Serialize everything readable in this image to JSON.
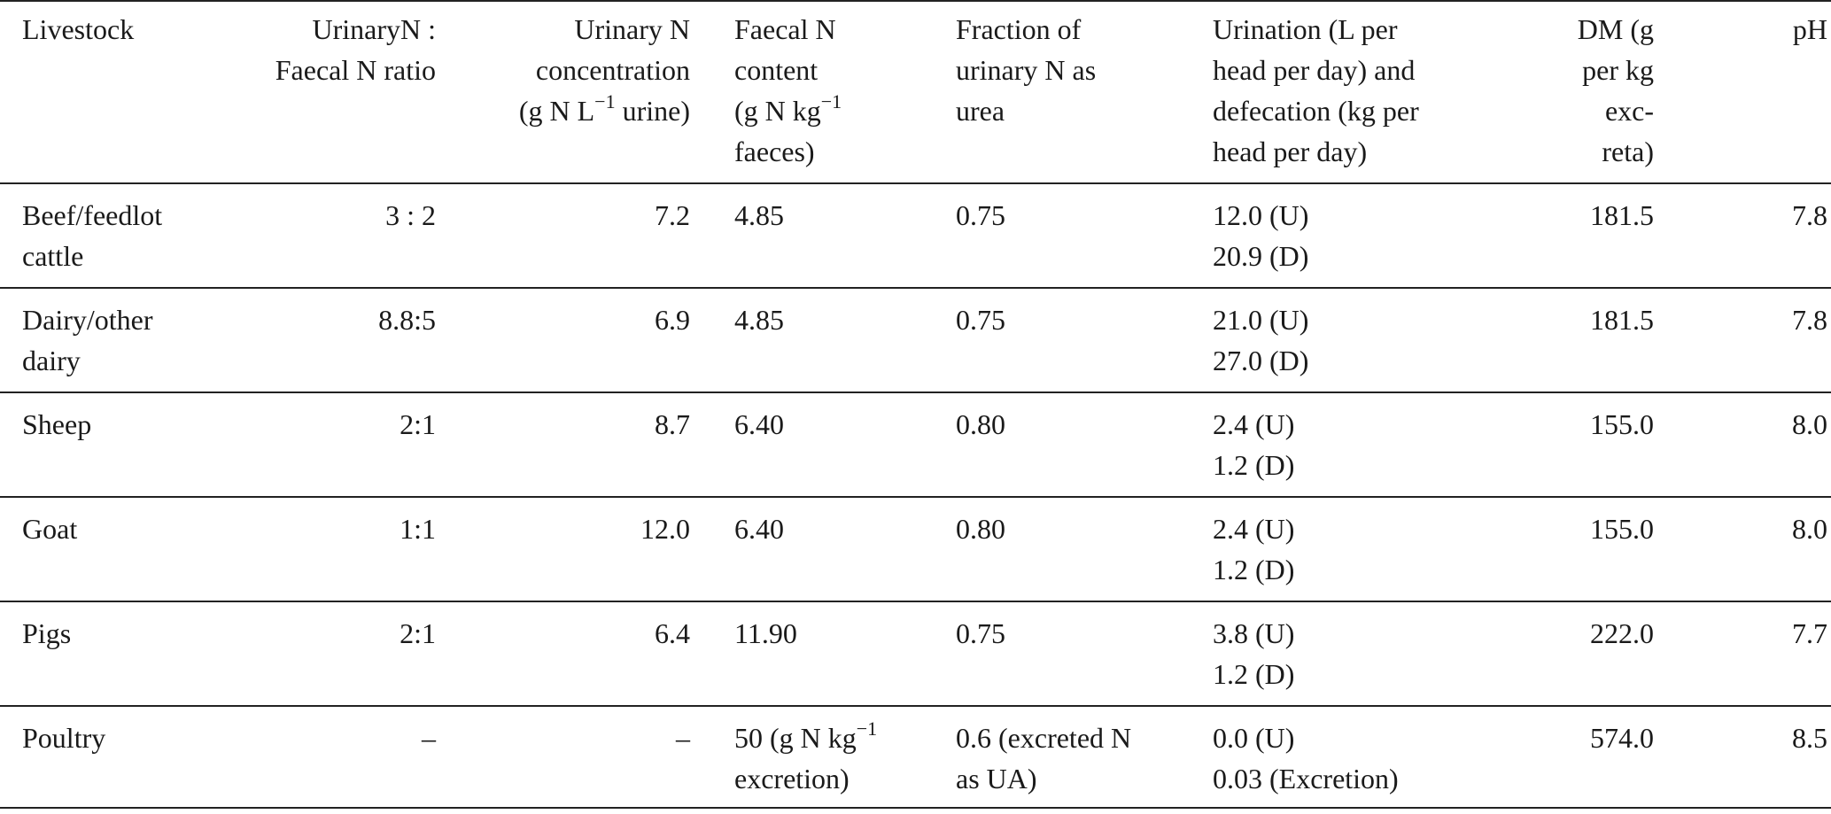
{
  "table": {
    "headers": [
      {
        "key": "livestock",
        "lines": [
          "Livestock"
        ]
      },
      {
        "key": "ratio",
        "lines": [
          "UrinaryN :",
          "Faecal N ratio"
        ]
      },
      {
        "key": "urinary_conc",
        "lines": [
          "Urinary N",
          "concentration",
          "(g N L",
          "−1",
          " urine)"
        ]
      },
      {
        "key": "faecal_content",
        "lines": [
          "Faecal N",
          "content",
          "(g N kg",
          "−1",
          "faeces)"
        ]
      },
      {
        "key": "fraction_urea",
        "lines": [
          "Fraction of",
          "urinary N as",
          "urea"
        ]
      },
      {
        "key": "urination",
        "lines": [
          "Urination (L per",
          "head per day) and",
          "defecation (kg per",
          "head per day)"
        ]
      },
      {
        "key": "dm",
        "lines": [
          "DM (g",
          "per kg",
          "exc-",
          "reta)"
        ]
      },
      {
        "key": "ph",
        "lines": [
          "pH"
        ]
      }
    ],
    "rows": [
      {
        "livestock": [
          "Beef/feedlot",
          "cattle"
        ],
        "ratio": "3 : 2",
        "urinary_conc": "7.2",
        "faecal_content": [
          "4.85"
        ],
        "fraction_urea": [
          "0.75"
        ],
        "urination": [
          "12.0 (U)",
          "20.9 (D)"
        ],
        "dm": "181.5",
        "ph": "7.8"
      },
      {
        "livestock": [
          "Dairy/other",
          "dairy"
        ],
        "ratio": "8.8:5",
        "urinary_conc": "6.9",
        "faecal_content": [
          "4.85"
        ],
        "fraction_urea": [
          "0.75"
        ],
        "urination": [
          "21.0 (U)",
          "27.0 (D)"
        ],
        "dm": "181.5",
        "ph": "7.8"
      },
      {
        "livestock": [
          "Sheep"
        ],
        "ratio": "2:1",
        "urinary_conc": "8.7",
        "faecal_content": [
          "6.40"
        ],
        "fraction_urea": [
          "0.80"
        ],
        "urination": [
          "2.4 (U)",
          "1.2 (D)"
        ],
        "dm": "155.0",
        "ph": "8.0"
      },
      {
        "livestock": [
          "Goat"
        ],
        "ratio": "1:1",
        "urinary_conc": "12.0",
        "faecal_content": [
          "6.40"
        ],
        "fraction_urea": [
          "0.80"
        ],
        "urination": [
          "2.4 (U)",
          "1.2 (D)"
        ],
        "dm": "155.0",
        "ph": "8.0"
      },
      {
        "livestock": [
          "Pigs"
        ],
        "ratio": "2:1",
        "urinary_conc": "6.4",
        "faecal_content": [
          "11.90"
        ],
        "fraction_urea": [
          "0.75"
        ],
        "urination": [
          "3.8 (U)",
          "1.2 (D)"
        ],
        "dm": "222.0",
        "ph": "7.7"
      },
      {
        "livestock": [
          "Poultry"
        ],
        "ratio": "–",
        "urinary_conc": "–",
        "faecal_content": [
          "50 (g N kg",
          "−1",
          "excretion)"
        ],
        "fraction_urea": [
          "0.6 (excreted N",
          "as UA)"
        ],
        "urination": [
          "0.0 (U)",
          "0.03 (Excretion)"
        ],
        "dm": "574.0",
        "ph": "8.5"
      }
    ]
  }
}
